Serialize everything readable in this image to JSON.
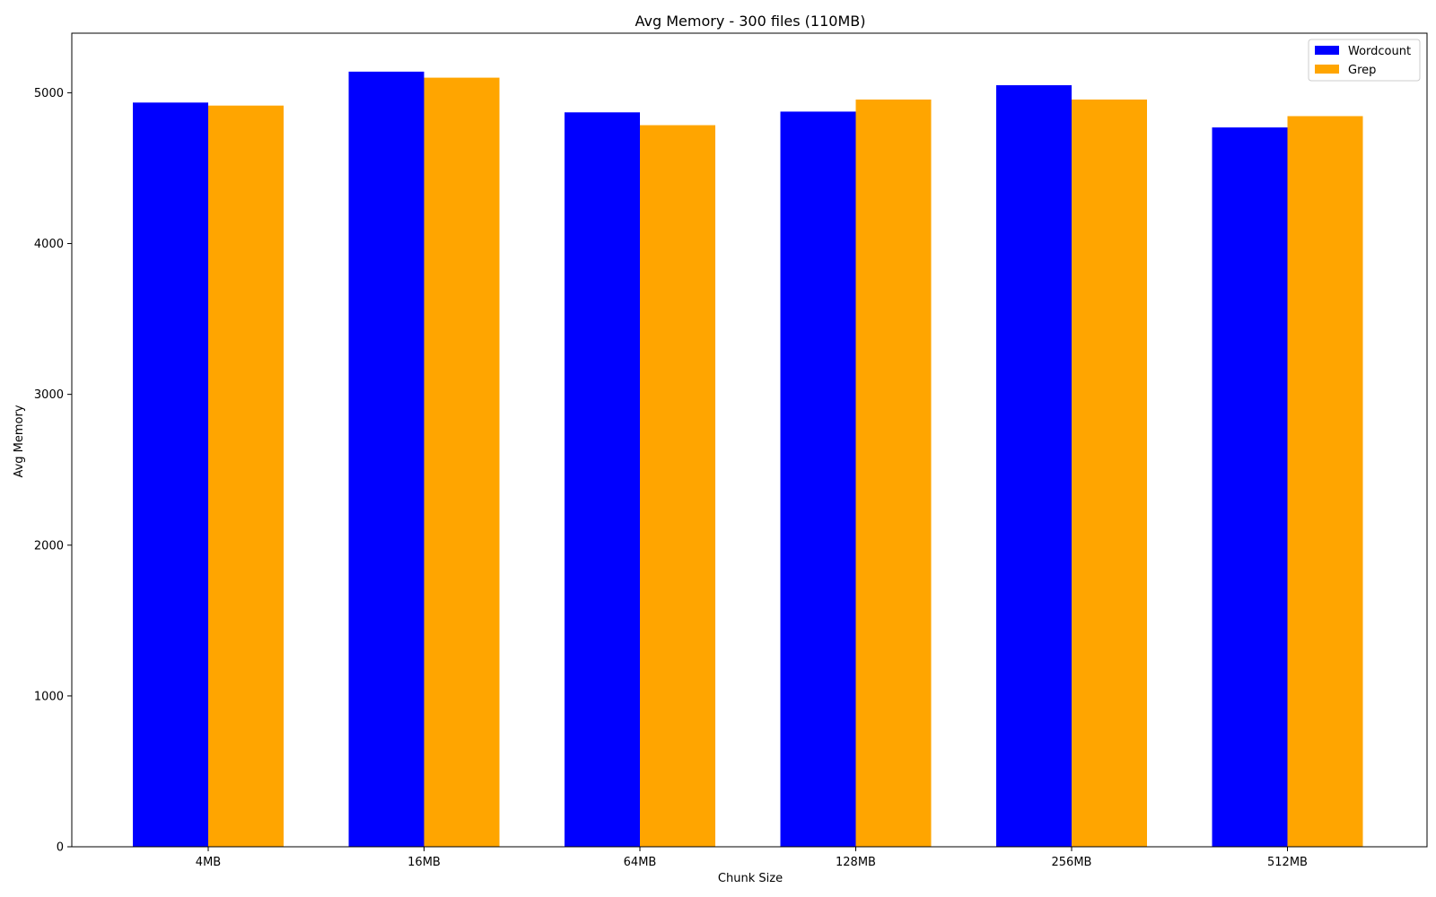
{
  "chart_data": {
    "type": "bar",
    "title": "Avg Memory - 300 files (110MB)",
    "xlabel": "Chunk Size",
    "ylabel": "Avg Memory",
    "categories": [
      "4MB",
      "16MB",
      "64MB",
      "128MB",
      "256MB",
      "512MB"
    ],
    "series": [
      {
        "name": "Wordcount",
        "color": "#0000ff",
        "values": [
          4935,
          5140,
          4870,
          4875,
          5050,
          4770
        ]
      },
      {
        "name": "Grep",
        "color": "#ffa500",
        "values": [
          4915,
          5100,
          4785,
          4955,
          4955,
          4845
        ]
      }
    ],
    "ylim": [
      0,
      5395
    ],
    "yticks": [
      0,
      1000,
      2000,
      3000,
      4000,
      5000
    ],
    "grid": false,
    "legend_position": "top-right"
  }
}
